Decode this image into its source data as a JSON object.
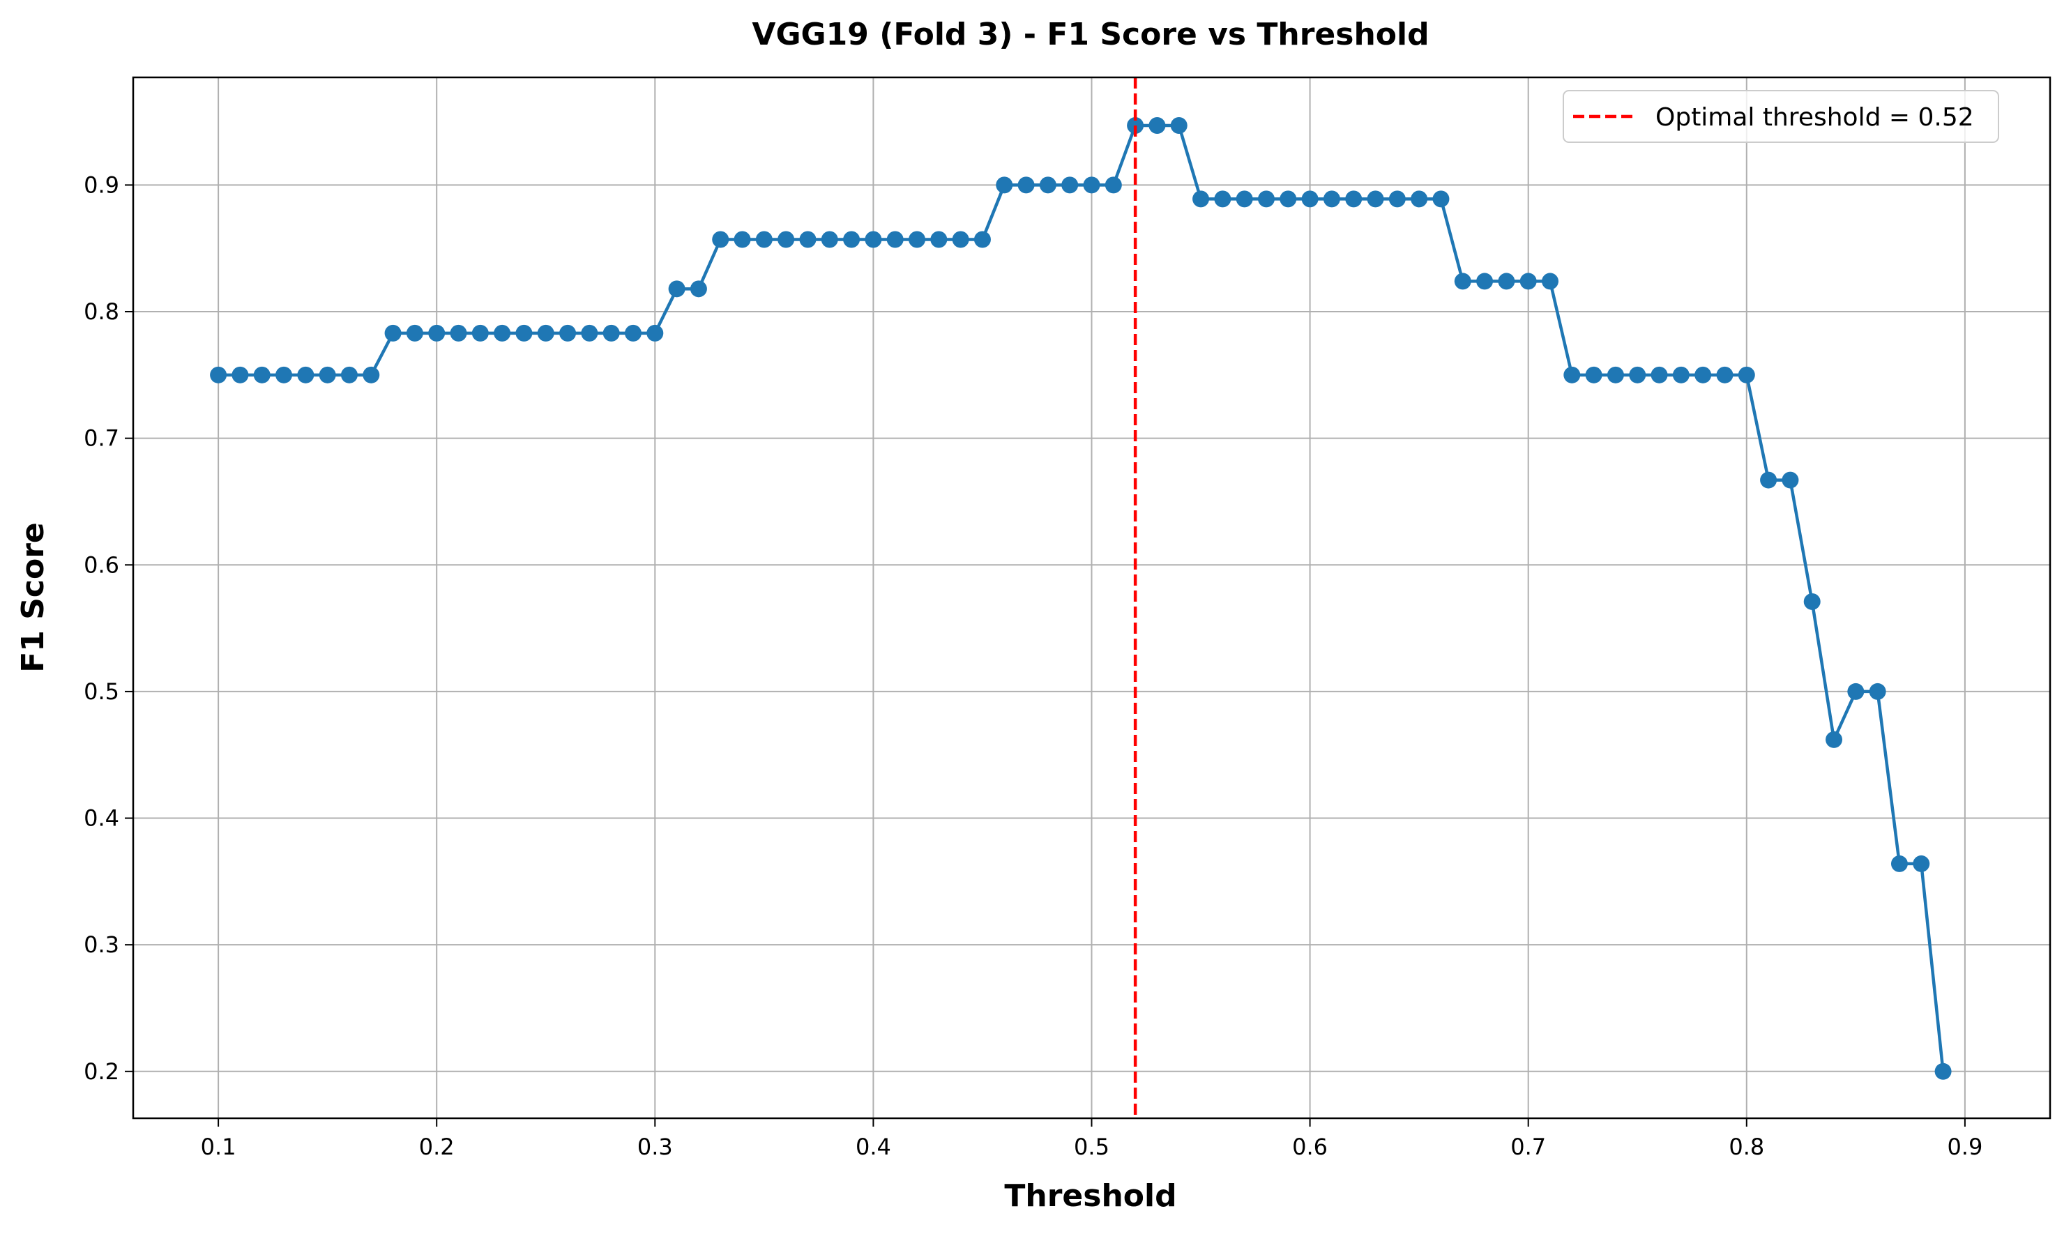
{
  "chart_data": {
    "type": "line",
    "title": "VGG19 (Fold 3) - F1 Score vs Threshold",
    "xlabel": "Threshold",
    "ylabel": "F1 Score",
    "xlim": [
      0.061,
      0.939
    ],
    "ylim": [
      0.163,
      0.985
    ],
    "xticks": [
      0.1,
      0.2,
      0.3,
      0.4,
      0.5,
      0.6,
      0.7,
      0.8,
      0.9
    ],
    "xtick_labels": [
      "0.1",
      "0.2",
      "0.3",
      "0.4",
      "0.5",
      "0.6",
      "0.7",
      "0.8",
      "0.9"
    ],
    "yticks": [
      0.2,
      0.3,
      0.4,
      0.5,
      0.6,
      0.7,
      0.8,
      0.9
    ],
    "ytick_labels": [
      "0.2",
      "0.3",
      "0.4",
      "0.5",
      "0.6",
      "0.7",
      "0.8",
      "0.9"
    ],
    "grid": true,
    "legend_position": "top-right",
    "series": [
      {
        "color": "#1f77b4",
        "marker": "circle",
        "x": [
          0.1,
          0.11,
          0.12,
          0.13,
          0.14,
          0.15,
          0.16,
          0.17,
          0.18,
          0.19,
          0.2,
          0.21,
          0.22,
          0.23,
          0.24,
          0.25,
          0.26,
          0.27,
          0.28,
          0.29,
          0.3,
          0.31,
          0.32,
          0.33,
          0.34,
          0.35,
          0.36,
          0.37,
          0.38,
          0.39,
          0.4,
          0.41,
          0.42,
          0.43,
          0.44,
          0.45,
          0.46,
          0.47,
          0.48,
          0.49,
          0.5,
          0.51,
          0.52,
          0.53,
          0.54,
          0.55,
          0.56,
          0.57,
          0.58,
          0.59,
          0.6,
          0.61,
          0.62,
          0.63,
          0.64,
          0.65,
          0.66,
          0.67,
          0.68,
          0.69,
          0.7,
          0.71,
          0.72,
          0.73,
          0.74,
          0.75,
          0.76,
          0.77,
          0.78,
          0.79,
          0.8,
          0.81,
          0.82,
          0.83,
          0.84,
          0.85,
          0.86,
          0.87,
          0.88,
          0.89
        ],
        "y": [
          0.75,
          0.75,
          0.75,
          0.75,
          0.75,
          0.75,
          0.75,
          0.75,
          0.783,
          0.783,
          0.783,
          0.783,
          0.783,
          0.783,
          0.783,
          0.783,
          0.783,
          0.783,
          0.783,
          0.783,
          0.783,
          0.818,
          0.818,
          0.857,
          0.857,
          0.857,
          0.857,
          0.857,
          0.857,
          0.857,
          0.857,
          0.857,
          0.857,
          0.857,
          0.857,
          0.857,
          0.9,
          0.9,
          0.9,
          0.9,
          0.9,
          0.9,
          0.947,
          0.947,
          0.947,
          0.889,
          0.889,
          0.889,
          0.889,
          0.889,
          0.889,
          0.889,
          0.889,
          0.889,
          0.889,
          0.889,
          0.889,
          0.824,
          0.824,
          0.824,
          0.824,
          0.824,
          0.75,
          0.75,
          0.75,
          0.75,
          0.75,
          0.75,
          0.75,
          0.75,
          0.75,
          0.667,
          0.667,
          0.571,
          0.462,
          0.5,
          0.5,
          0.364,
          0.364,
          0.2
        ]
      }
    ],
    "vlines": [
      {
        "x": 0.52,
        "color": "#ff0000",
        "style": "dashed",
        "label": "Optimal threshold = 0.52"
      }
    ]
  }
}
